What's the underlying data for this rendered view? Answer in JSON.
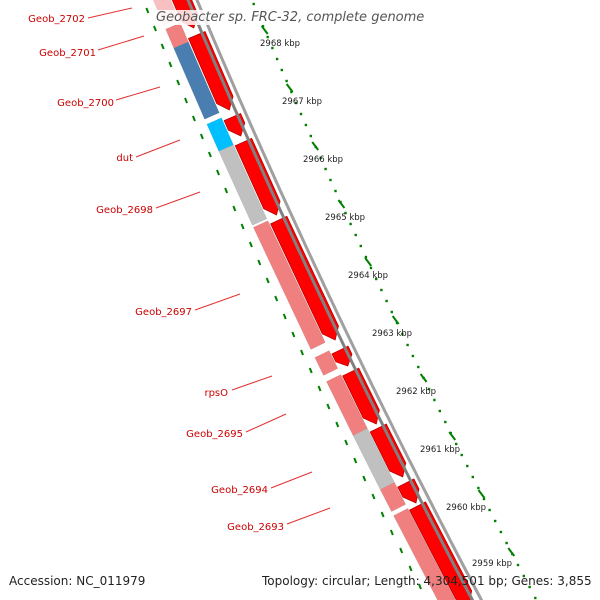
{
  "title": "Geobacter sp. FRC-32, complete genome",
  "footer": {
    "accession": "Accession: NC_011979",
    "summary": "Topology: circular; Length: 4,304,501 bp; Genes: 3,855"
  },
  "colors": {
    "cds_forward": "#ff0000",
    "gene_light": "#f08080",
    "gene_pale": "#f8c0c0",
    "gene_blue": "#4a7eb0",
    "gene_cyan": "#00bfff",
    "gene_gray": "#c0c0c0",
    "backbone": "#808080",
    "ticks": "#008000",
    "labels": "#cc0000"
  },
  "gene_labels": [
    "Geob_2702",
    "Geob_2701",
    "Geob_2700",
    "dut",
    "Geob_2698",
    "Geob_2697",
    "rpsO",
    "Geob_2695",
    "Geob_2694",
    "Geob_2693"
  ],
  "kbp_labels": [
    "2968 kbp",
    "2967 kbp",
    "2966 kbp",
    "2965 kbp",
    "2964 kbp",
    "2963 kbp",
    "2962 kbp",
    "2961 kbp",
    "2960 kbp",
    "2959 kbp"
  ]
}
